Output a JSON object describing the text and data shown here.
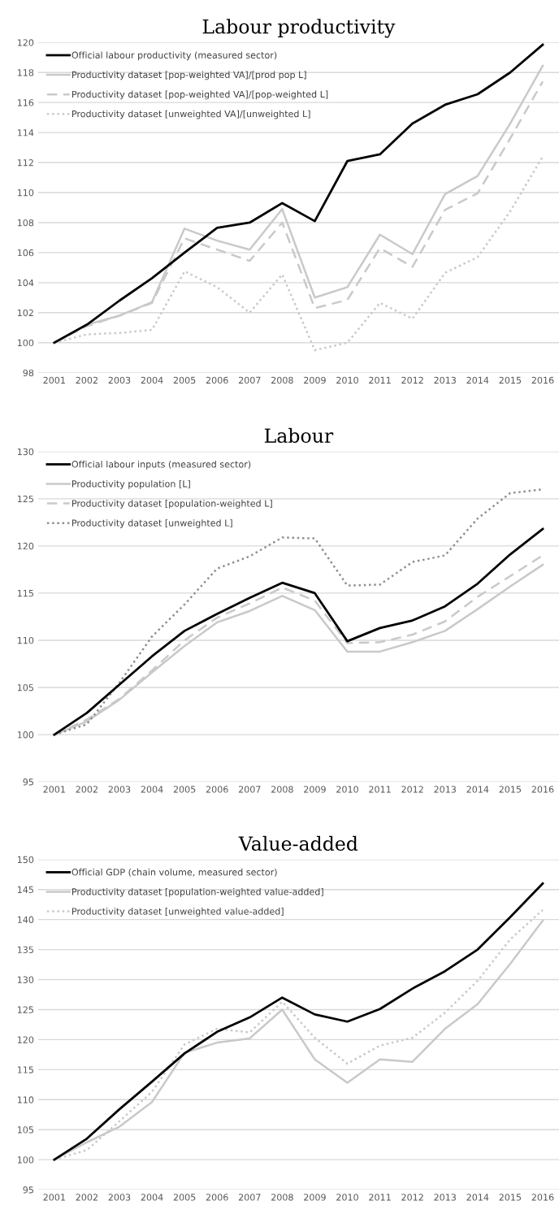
{
  "chart_data": [
    {
      "type": "line",
      "title": "Labour productivity",
      "categories": [
        "2001",
        "2002",
        "2003",
        "2004",
        "2005",
        "2006",
        "2007",
        "2008",
        "2009",
        "2010",
        "2011",
        "2012",
        "2013",
        "2014",
        "2015",
        "2016"
      ],
      "ylim": [
        98,
        120
      ],
      "yticks": [
        98,
        100,
        102,
        104,
        106,
        108,
        110,
        112,
        114,
        116,
        118,
        120
      ],
      "grid": "y",
      "legend": "top left",
      "series": [
        {
          "name": "Official labour productivity (measured sector)",
          "color": "#000000",
          "line_style": "solid",
          "values": [
            100,
            101.2,
            102.8,
            104.3,
            106.0,
            107.65,
            108.0,
            109.3,
            108.1,
            112.1,
            112.55,
            114.6,
            115.85,
            116.55,
            118.0,
            119.85
          ]
        },
        {
          "name": "Productivity dataset [pop-weighted VA]/[prod pop L]",
          "color": "#c9c9c9",
          "line_style": "solid",
          "values": [
            100,
            101.2,
            101.8,
            102.7,
            107.6,
            106.8,
            106.2,
            108.9,
            103.0,
            103.7,
            107.2,
            105.9,
            109.9,
            111.1,
            114.6,
            118.45
          ]
        },
        {
          "name": "Productivity dataset [pop-weighted VA]/[pop-weighted L]",
          "color": "#c9c9c9",
          "line_style": "dashed",
          "values": [
            100,
            101.1,
            101.8,
            102.65,
            106.95,
            106.2,
            105.45,
            108.0,
            102.3,
            102.85,
            106.3,
            105.05,
            108.85,
            109.95,
            113.6,
            117.4
          ]
        },
        {
          "name": "Productivity dataset [unweighted VA]/[unweighted L]",
          "color": "#c9c9c9",
          "line_style": "dotted",
          "values": [
            100,
            100.55,
            100.65,
            100.85,
            104.75,
            103.7,
            102.0,
            104.55,
            99.5,
            100.0,
            102.65,
            101.6,
            104.65,
            105.7,
            108.75,
            112.4
          ]
        }
      ]
    },
    {
      "type": "line",
      "title": "Labour",
      "categories": [
        "2001",
        "2002",
        "2003",
        "2004",
        "2005",
        "2006",
        "2007",
        "2008",
        "2009",
        "2010",
        "2011",
        "2012",
        "2013",
        "2014",
        "2015",
        "2016"
      ],
      "ylim": [
        95,
        130
      ],
      "yticks": [
        95,
        100,
        105,
        110,
        115,
        120,
        125,
        130
      ],
      "grid": "y",
      "legend": "top left",
      "series": [
        {
          "name": "Official labour inputs (measured sector)",
          "color": "#000000",
          "line_style": "solid",
          "values": [
            100,
            102.3,
            105.3,
            108.3,
            111.0,
            112.8,
            114.5,
            116.1,
            115.0,
            109.9,
            111.3,
            112.1,
            113.6,
            116.0,
            119.1,
            121.8
          ]
        },
        {
          "name": "Productivity population [L]",
          "color": "#c9c9c9",
          "line_style": "solid",
          "values": [
            100,
            101.4,
            103.7,
            106.6,
            109.4,
            111.9,
            113.1,
            114.7,
            113.2,
            108.8,
            108.8,
            109.8,
            111.0,
            113.3,
            115.7,
            118.0
          ]
        },
        {
          "name": "Productivity dataset [population-weighted L]",
          "color": "#c9c9c9",
          "line_style": "dashed",
          "values": [
            100,
            101.6,
            103.8,
            106.8,
            110.0,
            112.4,
            113.9,
            115.6,
            114.2,
            109.7,
            109.8,
            110.6,
            112.0,
            114.6,
            116.8,
            119.0
          ]
        },
        {
          "name": "Productivity dataset [unweighted L]",
          "color": "#909090",
          "line_style": "dotted",
          "values": [
            100,
            101.1,
            105.5,
            110.4,
            113.8,
            117.6,
            118.9,
            120.9,
            120.8,
            115.8,
            115.9,
            118.3,
            119.0,
            122.9,
            125.6,
            126.0
          ]
        }
      ]
    },
    {
      "type": "line",
      "title": "Value-added",
      "categories": [
        "2001",
        "2002",
        "2003",
        "2004",
        "2005",
        "2006",
        "2007",
        "2008",
        "2009",
        "2010",
        "2011",
        "2012",
        "2013",
        "2014",
        "2015",
        "2016"
      ],
      "ylim": [
        95,
        150
      ],
      "yticks": [
        95,
        100,
        105,
        110,
        115,
        120,
        125,
        130,
        135,
        140,
        145,
        150
      ],
      "grid": "y",
      "legend": "top left",
      "series": [
        {
          "name": "Official GDP (chain volume, measured sector)",
          "color": "#000000",
          "line_style": "solid",
          "values": [
            100,
            103.5,
            108.4,
            113.0,
            117.7,
            121.3,
            123.7,
            127.0,
            124.2,
            123.0,
            125.1,
            128.5,
            131.4,
            135.0,
            140.4,
            146.0
          ]
        },
        {
          "name": "Productivity dataset [population-weighted value-added]",
          "color": "#c9c9c9",
          "line_style": "solid",
          "values": [
            100,
            102.9,
            105.5,
            109.6,
            117.8,
            119.5,
            120.2,
            125.0,
            116.7,
            112.8,
            116.7,
            116.3,
            121.8,
            125.9,
            132.6,
            139.8
          ]
        },
        {
          "name": "Productivity dataset [unweighted value-added]",
          "color": "#c9c9c9",
          "line_style": "dotted",
          "values": [
            100,
            101.6,
            106.4,
            111.3,
            119.2,
            121.8,
            121.2,
            126.3,
            120.3,
            116.0,
            119.0,
            120.3,
            124.5,
            129.8,
            136.7,
            141.6
          ]
        }
      ]
    }
  ]
}
